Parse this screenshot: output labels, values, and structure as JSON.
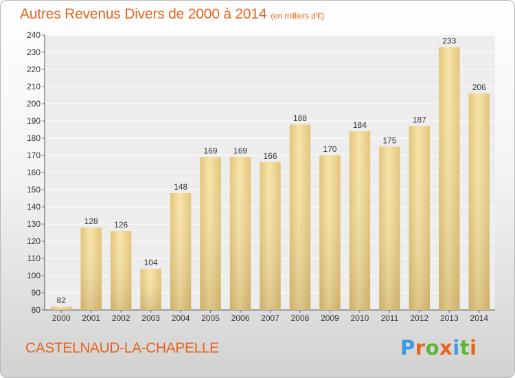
{
  "chart_data": {
    "type": "bar",
    "title": "Autres Revenus Divers de 2000 à 2014",
    "subtitle": "(en milliers d'€)",
    "categories": [
      "2000",
      "2001",
      "2002",
      "2003",
      "2004",
      "2005",
      "2006",
      "2007",
      "2008",
      "2009",
      "2010",
      "2011",
      "2012",
      "2013",
      "2014"
    ],
    "values": [
      82,
      128,
      126,
      104,
      148,
      169,
      169,
      166,
      188,
      170,
      184,
      175,
      187,
      233,
      206
    ],
    "ylim": [
      80,
      240
    ],
    "yticks": [
      80,
      90,
      100,
      110,
      120,
      130,
      140,
      150,
      160,
      170,
      180,
      190,
      200,
      210,
      220,
      230,
      240
    ],
    "grid": true,
    "data_labels": true,
    "bar_color": "#e3c47a",
    "bar_highlight": "#f7e4a8"
  },
  "footer": {
    "town": "CASTELNAUD-LA-CHAPELLE",
    "logo_text": "Proxiti"
  },
  "colors": {
    "title": "#e8631e",
    "logo_letters": [
      "#3a9be0",
      "#e8631e",
      "#5fb43a",
      "#e8631e",
      "#3a9be0",
      "#5fb43a",
      "#e8631e"
    ]
  }
}
